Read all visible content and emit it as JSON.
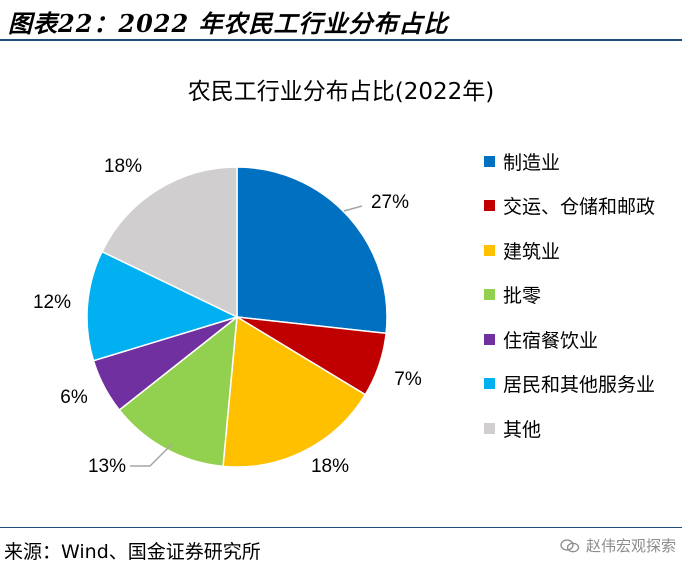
{
  "header": {
    "title": "图表22：2022 年农民工行业分布占比"
  },
  "chart_data": {
    "type": "pie",
    "title": "农民工行业分布占比(2022年)",
    "slices": [
      {
        "label": "制造业",
        "value": 27,
        "display": "27%",
        "color": "#0070c0"
      },
      {
        "label": "交运、仓储和邮政",
        "value": 7,
        "display": "7%",
        "color": "#c00000"
      },
      {
        "label": "建筑业",
        "value": 18,
        "display": "18%",
        "color": "#ffc000"
      },
      {
        "label": "批零",
        "value": 13,
        "display": "13%",
        "color": "#92d050"
      },
      {
        "label": "住宿餐饮业",
        "value": 6,
        "display": "6%",
        "color": "#7030a0"
      },
      {
        "label": "居民和其他服务业",
        "value": 12,
        "display": "12%",
        "color": "#00b0f0"
      },
      {
        "label": "其他",
        "value": 18,
        "display": "18%",
        "color": "#d0cece"
      }
    ],
    "legend_position": "right"
  },
  "footer": {
    "source": "来源：Wind、国金证券研究所"
  },
  "watermark": {
    "text": "赵伟宏观探索",
    "icon": "wechat-icon"
  }
}
